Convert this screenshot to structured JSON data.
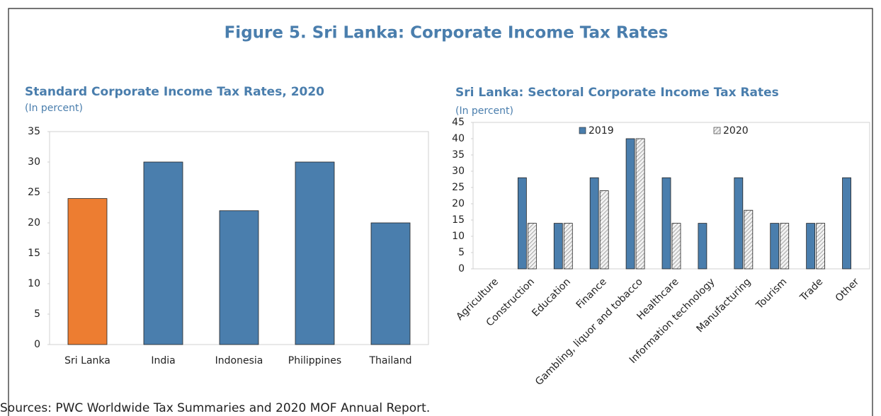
{
  "title": "Figure 5. Sri Lanka: Corporate Income Tax Rates",
  "source": "Sources: PWC Worldwide Tax Summaries and 2020 MOF Annual Report.",
  "chart_data": [
    {
      "type": "bar",
      "title": "Standard Corporate Income Tax Rates, 2020",
      "subtitle": "(In percent)",
      "categories": [
        "Sri Lanka",
        "India",
        "Indonesia",
        "Philippines",
        "Thailand"
      ],
      "values": [
        24,
        30,
        22,
        30,
        20
      ],
      "colors": [
        "#ed7d31",
        "#4a7ead",
        "#4a7ead",
        "#4a7ead",
        "#4a7ead"
      ],
      "ylim": [
        0,
        35
      ],
      "yticks": [
        0,
        5,
        10,
        15,
        20,
        25,
        30,
        35
      ]
    },
    {
      "type": "bar",
      "title": "Sri Lanka: Sectoral Corporate Income Tax Rates",
      "subtitle": "(In percent)",
      "categories": [
        "Agriculture",
        "Construction",
        "Education",
        "Finance",
        "Gambling, liquor and tobacco",
        "Healthcare",
        "Information technology",
        "Manufacturing",
        "Tourism",
        "Trade",
        "Other"
      ],
      "series": [
        {
          "name": "2019",
          "color": "#4a7ead",
          "values": [
            0,
            28,
            14,
            28,
            40,
            28,
            14,
            28,
            14,
            14,
            28
          ]
        },
        {
          "name": "2020",
          "color": "#d9d9d9",
          "hatch": true,
          "values": [
            0,
            14,
            14,
            24,
            40,
            14,
            null,
            18,
            14,
            14,
            null
          ]
        }
      ],
      "ylim": [
        0,
        45
      ],
      "yticks": [
        0,
        5,
        10,
        15,
        20,
        25,
        30,
        35,
        40,
        45
      ],
      "legend": "top"
    }
  ]
}
